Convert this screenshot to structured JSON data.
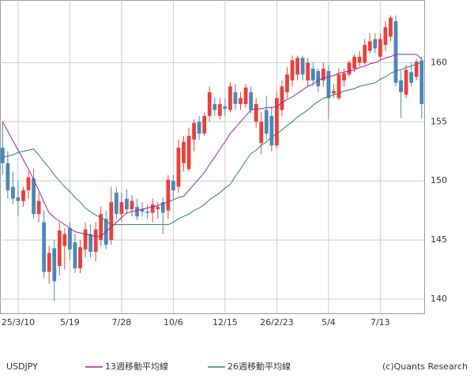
{
  "chart_data": {
    "type": "candlestick",
    "symbol": "USDJPY",
    "copyright": "(c)Quants Research",
    "categories": [
      null,
      null,
      null,
      "25/3/10",
      null,
      null,
      null,
      null,
      null,
      null,
      null,
      null,
      null,
      "5/19",
      null,
      null,
      null,
      null,
      null,
      null,
      null,
      null,
      null,
      "7/28",
      null,
      null,
      null,
      null,
      null,
      null,
      null,
      null,
      null,
      "10/6",
      null,
      null,
      null,
      null,
      null,
      null,
      null,
      null,
      null,
      "12/15",
      null,
      null,
      null,
      null,
      null,
      null,
      null,
      null,
      null,
      "26/2/23",
      null,
      null,
      null,
      null,
      null,
      null,
      null,
      null,
      null,
      "5/4",
      null,
      null,
      null,
      null,
      null,
      null,
      null,
      null,
      null,
      "7/13",
      null,
      null,
      null,
      null,
      null,
      null,
      null,
      null
    ],
    "open": [
      152.8,
      151.5,
      149.5,
      148.6,
      148.3,
      149.2,
      150.2,
      147.2,
      146.5,
      142.3,
      144.3,
      142.8,
      144.5,
      146,
      144.8,
      142.6,
      144.2,
      145.5,
      144,
      145,
      146.8,
      145,
      149,
      147.2,
      148.5,
      147.6,
      147.8,
      147.6,
      147.4,
      147.3,
      147.6,
      148.2,
      147.5,
      150,
      149.5,
      151.5,
      151,
      153.5,
      155,
      154,
      155.5,
      156.5,
      155.5,
      156.3,
      156,
      157.5,
      156.5,
      156.5,
      157.5,
      155,
      153.2,
      156,
      155.5,
      153,
      156,
      157.5,
      158.5,
      159,
      160.4,
      158.5,
      159.5,
      159.3,
      158.5,
      159.3,
      157.4,
      157,
      158.5,
      159,
      159.5,
      160,
      160,
      161,
      162,
      160.5,
      161.5,
      162.2,
      163.5,
      158.5,
      157.3,
      159.2,
      158.8,
      160.2
    ],
    "high": [
      155,
      152.5,
      150.8,
      150,
      149.5,
      150.8,
      151,
      149,
      147.5,
      144.5,
      145,
      146.5,
      146,
      146.5,
      145.5,
      145,
      146.5,
      146.3,
      146.5,
      147.8,
      147.5,
      149.5,
      149.5,
      149,
      149.3,
      148.8,
      148.5,
      148.2,
      148,
      148.5,
      148.2,
      148.6,
      150.5,
      150.5,
      153.5,
      153.8,
      154.5,
      155.2,
      155.5,
      155.8,
      158,
      157,
      157,
      157,
      158.3,
      158.2,
      157.5,
      158.2,
      158,
      157,
      155.8,
      157.2,
      156.3,
      157.5,
      158.5,
      159.6,
      160.6,
      160.6,
      160.6,
      160.4,
      160,
      159.5,
      160,
      159.8,
      158.2,
      159.5,
      159.5,
      160.2,
      160.7,
      161,
      162,
      162.5,
      162.5,
      162.5,
      163.5,
      164,
      164,
      159.3,
      159.8,
      160,
      160.3,
      160.5
    ],
    "low": [
      150.5,
      148.5,
      148,
      147,
      147.8,
      148.5,
      146.8,
      146.5,
      141.8,
      141.3,
      139.8,
      142,
      142.5,
      143.3,
      142.2,
      142.2,
      143.5,
      143.5,
      143.2,
      144.5,
      144.2,
      144.6,
      146.8,
      146.5,
      147.2,
      147,
      146.7,
      147,
      146.8,
      146.5,
      146.8,
      145.5,
      146.8,
      148.5,
      149,
      150.8,
      150.8,
      152.5,
      153.5,
      153.8,
      155,
      155.5,
      155.2,
      155.5,
      155.8,
      156,
      156,
      156.2,
      155.7,
      154.5,
      152.3,
      153.5,
      152.5,
      152.8,
      155.5,
      157,
      158,
      158.5,
      158.5,
      158,
      158,
      157.5,
      158,
      155.2,
      157,
      156.8,
      158,
      158.8,
      159.2,
      159.7,
      159.8,
      160.8,
      160.8,
      160.2,
      161,
      161.8,
      158,
      155.3,
      157,
      158,
      158.5,
      155.3
    ],
    "close": [
      151.5,
      149.2,
      148.5,
      148.3,
      149.2,
      150.3,
      147.2,
      148.3,
      142.3,
      143.9,
      141.5,
      145.8,
      145.5,
      144.2,
      142.6,
      144.4,
      145.9,
      144,
      145.9,
      147.2,
      144.6,
      148.2,
      147.2,
      148.2,
      147.6,
      148.3,
      147,
      147.4,
      147.3,
      148,
      147.8,
      147.3,
      150.1,
      149.2,
      152.8,
      153.3,
      153.8,
      154.9,
      154,
      155.5,
      157.5,
      156,
      156.5,
      156.1,
      158,
      156.5,
      157,
      157.9,
      156,
      156.5,
      155,
      154,
      153,
      157,
      158,
      159,
      160.2,
      160.4,
      159,
      160,
      158.5,
      158,
      159.5,
      157,
      157.6,
      159,
      159.1,
      160,
      160.5,
      160.5,
      161.5,
      161.8,
      161.2,
      162,
      163,
      163.8,
      158.3,
      157.5,
      159.4,
      158.3,
      160.1,
      156.5
    ],
    "up_color": "#e8413a",
    "down_color": "#4a87b9",
    "lines": [
      {
        "name": "13週移動平均線",
        "color": "#a0209a",
        "values": [
          155,
          154.2,
          153.4,
          152.6,
          151.8,
          151,
          150.1,
          149.2,
          148.2,
          147.3,
          146.9,
          146.6,
          146.3,
          146,
          145.7,
          145.6,
          145.5,
          145.4,
          145.3,
          145.3,
          145.7,
          146.1,
          146.5,
          146.9,
          147.3,
          147.4,
          147.5,
          147.6,
          147.7,
          147.8,
          147.9,
          148.1,
          148.2,
          148.4,
          148.6,
          148.7,
          149.2,
          149.7,
          150.2,
          150.7,
          151.4,
          152,
          152.7,
          153.3,
          154,
          154.5,
          155,
          155.5,
          156,
          156.1,
          156.1,
          156.2,
          156.2,
          156.3,
          156.6,
          156.9,
          157.1,
          157.4,
          157.7,
          158,
          158.2,
          158.5,
          158.7,
          158.8,
          158.9,
          159.1,
          159.2,
          159.3,
          159.4,
          159.6,
          159.7,
          159.9,
          160,
          160.2,
          160.4,
          160.5,
          160.7,
          160.7,
          160.7,
          160.7,
          160.7,
          160.3
        ]
      },
      {
        "name": "26週移動平均線",
        "color": "#2f7d70",
        "values": [
          152,
          152.1,
          152.2,
          152.4,
          152.5,
          152.6,
          152.7,
          152.2,
          151.6,
          151.1,
          150.5,
          150,
          149.5,
          149.1,
          148.6,
          148.2,
          147.7,
          147.4,
          147.1,
          146.9,
          146.6,
          146.3,
          146.3,
          146.3,
          146.3,
          146.3,
          146.3,
          146.3,
          146.3,
          146.3,
          146.3,
          146.3,
          146.3,
          146.5,
          146.8,
          147,
          147.2,
          147.5,
          147.7,
          148,
          148.4,
          148.7,
          149,
          149.4,
          149.7,
          150.4,
          151,
          151.7,
          152.3,
          152.6,
          153,
          153.3,
          153.7,
          154,
          154.3,
          154.7,
          155,
          155.4,
          155.7,
          156,
          156.4,
          156.7,
          157,
          157.1,
          157.3,
          157.4,
          157.6,
          157.7,
          157.8,
          158,
          158.1,
          158.2,
          158.3,
          158.6,
          158.8,
          159.1,
          159.3,
          159.4,
          159.6,
          159.7,
          159.9,
          160
        ]
      }
    ],
    "ylim": [
      138.8,
      165.3
    ],
    "yticks": [
      140,
      145,
      150,
      155,
      160
    ],
    "grid": true
  }
}
